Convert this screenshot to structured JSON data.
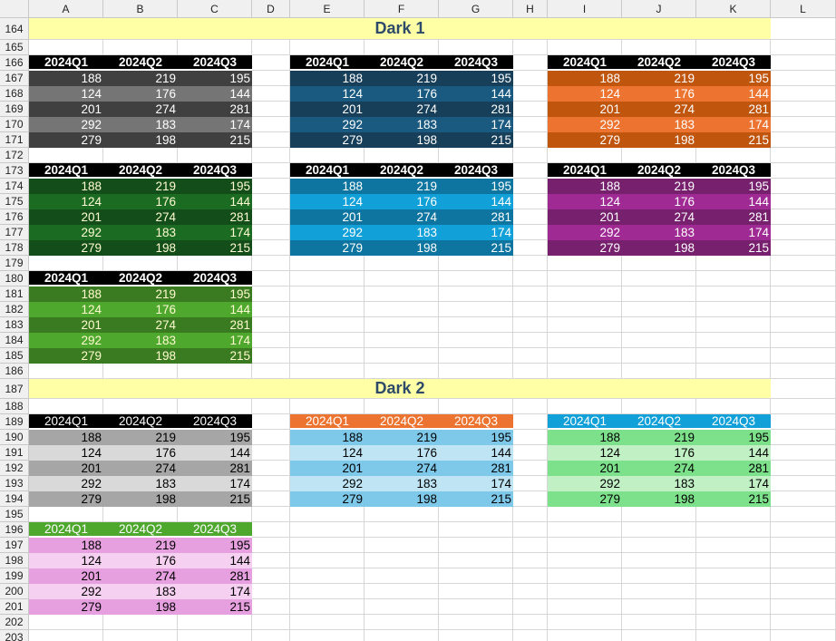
{
  "columns": [
    "A",
    "B",
    "C",
    "D",
    "E",
    "F",
    "G",
    "H",
    "I",
    "J",
    "K",
    "L"
  ],
  "rows": [
    164,
    165,
    166,
    167,
    168,
    169,
    170,
    171,
    172,
    173,
    174,
    175,
    176,
    177,
    178,
    179,
    180,
    181,
    182,
    183,
    184,
    185,
    186,
    187,
    188,
    189,
    190,
    191,
    192,
    193,
    194,
    195,
    196,
    197,
    198,
    199,
    200,
    201,
    202,
    203
  ],
  "sections": [
    {
      "title": "Dark 1"
    },
    {
      "title": "Dark 2"
    }
  ],
  "headers": [
    "2024Q1",
    "2024Q2",
    "2024Q3"
  ],
  "values": [
    [
      "188",
      "219",
      "195"
    ],
    [
      "124",
      "176",
      "144"
    ],
    [
      "201",
      "274",
      "281"
    ],
    [
      "292",
      "183",
      "174"
    ],
    [
      "279",
      "198",
      "215"
    ]
  ],
  "tables": [
    {
      "style": "Dark 1 gray",
      "header_bg": "#000000",
      "header_fg": "#ffffff",
      "header_bold": true,
      "band_dark": "#404040",
      "band_light": "#757575",
      "text": "#ffffff"
    },
    {
      "style": "Dark 1 navy",
      "header_bg": "#000000",
      "header_fg": "#ffffff",
      "header_bold": true,
      "band_dark": "#173f5a",
      "band_light": "#1a5a80",
      "text": "#ffffff"
    },
    {
      "style": "Dark 1 orange",
      "header_bg": "#000000",
      "header_fg": "#ffffff",
      "header_bold": true,
      "band_dark": "#c0550e",
      "band_light": "#ec7430",
      "text": "#ffffff"
    },
    {
      "style": "Dark 1 green",
      "header_bg": "#000000",
      "header_fg": "#ffffff",
      "header_bold": true,
      "band_dark": "#134e1a",
      "band_light": "#1c6b22",
      "text": "#fffbd0"
    },
    {
      "style": "Dark 1 blue",
      "header_bg": "#000000",
      "header_fg": "#ffffff",
      "header_bold": true,
      "band_dark": "#0e75a0",
      "band_light": "#12a0d8",
      "text": "#ffffff"
    },
    {
      "style": "Dark 1 purple",
      "header_bg": "#000000",
      "header_fg": "#ffffff",
      "header_bold": true,
      "band_dark": "#76206e",
      "band_light": "#a02a94",
      "text": "#ffffff"
    },
    {
      "style": "Dark 1 lime",
      "header_bg": "#000000",
      "header_fg": "#ffffff",
      "header_bold": true,
      "band_dark": "#3a7a20",
      "band_light": "#4ea82e",
      "text": "#fffbd0"
    },
    {
      "style": "Dark 2 gray",
      "header_bg": "#000000",
      "header_fg": "#ffffff",
      "header_bold": false,
      "band_dark": "#a6a6a6",
      "band_light": "#d9d9d9",
      "text": "#000000"
    },
    {
      "style": "Dark 2 blue",
      "header_bg": "#ec7430",
      "header_fg": "#ffffff",
      "header_bold": false,
      "band_dark": "#7ec8ea",
      "band_light": "#bfe5f5",
      "text": "#000000"
    },
    {
      "style": "Dark 2 green",
      "header_bg": "#12a0d8",
      "header_fg": "#ffffff",
      "header_bold": false,
      "band_dark": "#7de08a",
      "band_light": "#c0f0c4",
      "text": "#000000"
    },
    {
      "style": "Dark 2 pink",
      "header_bg": "#4ea82e",
      "header_fg": "#ffffff",
      "header_bold": false,
      "band_dark": "#e6a0e0",
      "band_light": "#f5d0f0",
      "text": "#000000"
    }
  ]
}
